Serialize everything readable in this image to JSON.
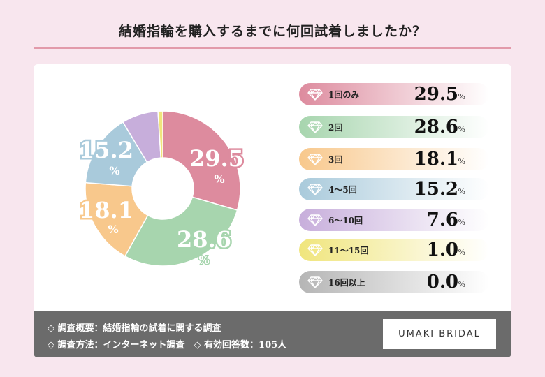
{
  "title": "結婚指輪を購入するまでに何回試着しましたか？",
  "chart_data": {
    "type": "pie",
    "donut": true,
    "categories": [
      "1回のみ",
      "2回",
      "3回",
      "4～5回",
      "6～10回",
      "11～15回",
      "16回以上"
    ],
    "values": [
      29.5,
      28.6,
      18.1,
      15.2,
      7.6,
      1.0,
      0.0
    ],
    "colors": [
      "#dd8b9e",
      "#a7d5ae",
      "#f8c88c",
      "#a9cadb",
      "#c7aedb",
      "#f0e57c",
      "#b5b5b5"
    ],
    "unit": "%",
    "segment_labels": [
      "29.5",
      "28.6",
      "18.1",
      "15.2"
    ]
  },
  "legend_icon": "diamond-icon",
  "footer": {
    "line1": "◇ 調査概要：結婚指輪の試着に関する調査",
    "line2": "◇ 調査方法：インターネット調査　◇ 有効回答数：105人",
    "logo": "UMAKI BRIDAL"
  }
}
